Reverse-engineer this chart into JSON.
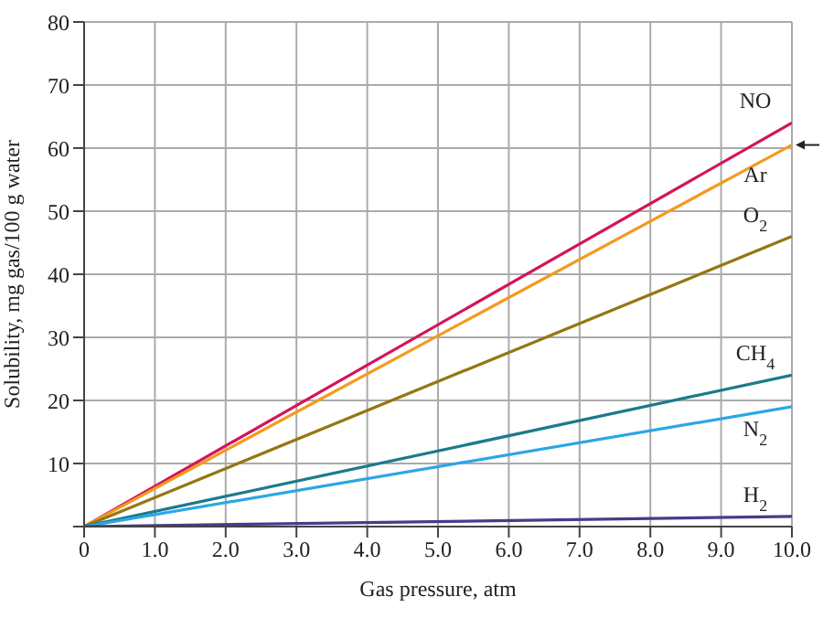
{
  "chart_data": {
    "type": "line",
    "xlabel": "Gas pressure, atm",
    "ylabel": "Solubility, mg gas/100 g water",
    "x": [
      0,
      10
    ],
    "xlim": [
      0,
      10
    ],
    "xticks": [
      0,
      {
        "value": 1,
        "label": "1.0"
      },
      {
        "value": 2,
        "label": "2.0"
      },
      {
        "value": 3,
        "label": "3.0"
      },
      {
        "value": 4,
        "label": "4.0"
      },
      {
        "value": 5,
        "label": "5.0"
      },
      {
        "value": 6,
        "label": "6.0"
      },
      {
        "value": 7,
        "label": "7.0"
      },
      {
        "value": 8,
        "label": "8.0"
      },
      {
        "value": 9,
        "label": "9.0"
      },
      {
        "value": 10,
        "label": "10.0"
      }
    ],
    "ylim": [
      0,
      80
    ],
    "yticks": [
      {
        "value": 0,
        "label": null
      },
      10,
      20,
      30,
      40,
      50,
      60,
      70,
      80
    ],
    "grid": true,
    "legend": false,
    "marker": "none",
    "line_style": "solid",
    "series": [
      {
        "name": "NO",
        "color": "#d4145a",
        "values": [
          0,
          64
        ]
      },
      {
        "name": "Ar",
        "color": "#f39a1e",
        "values": [
          0,
          60.5
        ]
      },
      {
        "name": "O$_{2}$",
        "color": "#957612",
        "values": [
          0,
          46
        ]
      },
      {
        "name": "CH$_{4}$",
        "color": "#1c7a8c",
        "values": [
          0,
          24
        ]
      },
      {
        "name": "N$_{2}$",
        "color": "#2ba6e6",
        "values": [
          0,
          19
        ]
      },
      {
        "name": "H$_{2}$",
        "color": "#4a3a8a",
        "values": [
          0,
          1.6
        ]
      }
    ]
  }
}
